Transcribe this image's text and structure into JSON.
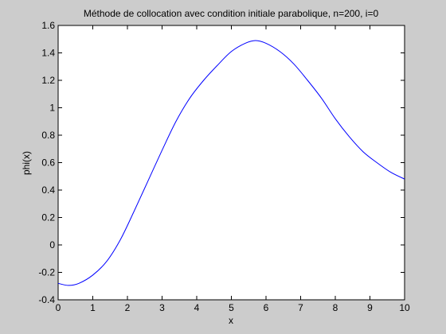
{
  "chart_data": {
    "type": "line",
    "title": "Méthode de collocation avec condition initiale parabolique, n=200, i=0",
    "xlabel": "x",
    "ylabel": "phi(x)",
    "xlim": [
      0,
      10
    ],
    "ylim": [
      -0.4,
      1.6
    ],
    "grid": false,
    "legend": "none",
    "x_ticks": [
      "0",
      "1",
      "2",
      "3",
      "4",
      "5",
      "6",
      "7",
      "8",
      "9",
      "10"
    ],
    "y_ticks": [
      "-0.4",
      "-0.2",
      "0",
      "0.2",
      "0.4",
      "0.6",
      "0.8",
      "1",
      "1.2",
      "1.4",
      "1.6"
    ],
    "series": [
      {
        "color": "#0000ff",
        "x": [
          0,
          0.3,
          0.6,
          1.0,
          1.4,
          1.8,
          2.2,
          2.6,
          3.0,
          3.4,
          3.8,
          4.2,
          4.6,
          5.0,
          5.4,
          5.7,
          6.0,
          6.4,
          6.8,
          7.2,
          7.6,
          8.0,
          8.4,
          8.8,
          9.2,
          9.6,
          10.0
        ],
        "y": [
          -0.28,
          -0.295,
          -0.28,
          -0.22,
          -0.12,
          0.04,
          0.25,
          0.47,
          0.69,
          0.9,
          1.07,
          1.2,
          1.31,
          1.41,
          1.47,
          1.49,
          1.47,
          1.41,
          1.32,
          1.2,
          1.07,
          0.92,
          0.79,
          0.68,
          0.6,
          0.53,
          0.48
        ]
      }
    ]
  },
  "colors": {
    "figure_background": "#cccccc",
    "axes_background": "#ffffff",
    "line": "#0000ff"
  }
}
